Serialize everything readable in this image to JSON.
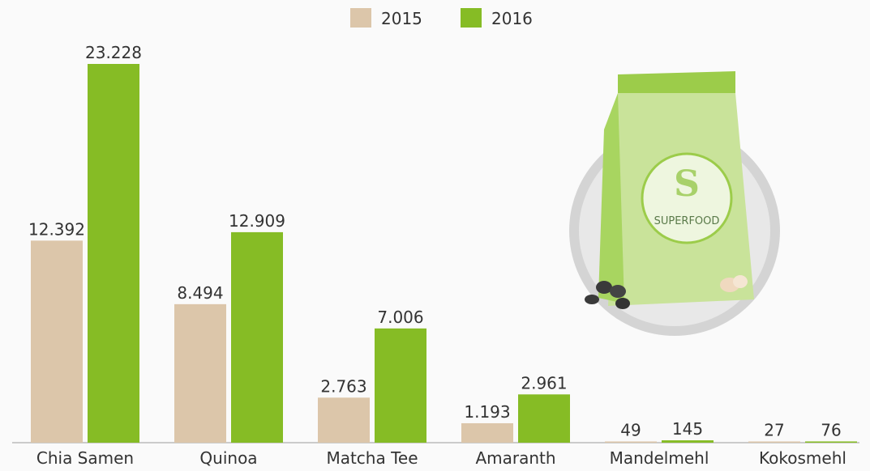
{
  "chart_data": {
    "type": "bar",
    "categories": [
      "Chia Samen",
      "Quinoa",
      "Matcha Tee",
      "Amaranth",
      "Mandelmehl",
      "Kokosmehl"
    ],
    "series": [
      {
        "name": "2015",
        "color": "#dcc6aa",
        "values": [
          12392,
          8494,
          2763,
          1193,
          49,
          27
        ],
        "value_labels": [
          "12.392",
          "8.494",
          "2.763",
          "1.193",
          "49",
          "27"
        ]
      },
      {
        "name": "2016",
        "color": "#86bc25",
        "values": [
          23228,
          12909,
          7006,
          2961,
          145,
          76
        ],
        "value_labels": [
          "23.228",
          "12.909",
          "7.006",
          "2.961",
          "145",
          "76"
        ]
      }
    ],
    "legend": "top"
  },
  "illustration": {
    "letter": "S",
    "label": "SUPERFOOD"
  }
}
